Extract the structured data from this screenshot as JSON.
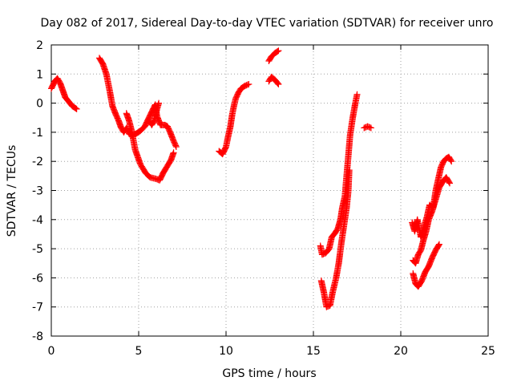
{
  "chart_data": {
    "type": "scatter",
    "title": "Day 082 of 2017, Sidereal Day-to-day VTEC variation (SDTVAR) for receiver unro",
    "xlabel": "GPS time / hours",
    "ylabel": "SDTVAR / TECUs",
    "xlim": [
      0,
      25
    ],
    "ylim": [
      -8,
      2
    ],
    "xticks": [
      0,
      5,
      10,
      15,
      20,
      25
    ],
    "yticks": [
      -8,
      -7,
      -6,
      -5,
      -4,
      -3,
      -2,
      -1,
      0,
      1,
      2
    ],
    "grid": true,
    "marker": "+",
    "marker_color": "#ff0000",
    "series": [
      {
        "name": "SDTVAR",
        "segments": [
          [
            [
              0.0,
              0.5
            ],
            [
              0.2,
              0.75
            ],
            [
              0.35,
              0.85
            ],
            [
              0.5,
              0.7
            ],
            [
              0.65,
              0.45
            ],
            [
              0.8,
              0.2
            ],
            [
              1.0,
              0.05
            ],
            [
              1.2,
              -0.1
            ],
            [
              1.45,
              -0.2
            ]
          ],
          [
            [
              2.75,
              1.55
            ],
            [
              2.95,
              1.35
            ],
            [
              3.15,
              1.0
            ],
            [
              3.35,
              0.4
            ],
            [
              3.5,
              -0.1
            ],
            [
              3.7,
              -0.4
            ],
            [
              3.85,
              -0.6
            ],
            [
              4.0,
              -0.85
            ],
            [
              4.15,
              -1.0
            ],
            [
              4.3,
              -0.85
            ],
            [
              4.45,
              -1.05
            ],
            [
              4.6,
              -1.1
            ],
            [
              4.85,
              -1.05
            ],
            [
              5.1,
              -0.95
            ],
            [
              5.35,
              -0.8
            ],
            [
              5.55,
              -0.55
            ],
            [
              5.75,
              -0.3
            ],
            [
              5.95,
              -0.05
            ],
            [
              6.05,
              -0.45
            ],
            [
              6.25,
              -0.75
            ],
            [
              6.5,
              -0.75
            ],
            [
              6.65,
              -0.8
            ],
            [
              6.8,
              -1.0
            ],
            [
              7.0,
              -1.3
            ],
            [
              7.15,
              -1.5
            ]
          ],
          [
            [
              4.3,
              -0.35
            ],
            [
              4.45,
              -0.6
            ],
            [
              4.6,
              -0.95
            ],
            [
              4.8,
              -1.6
            ],
            [
              5.1,
              -2.1
            ],
            [
              5.4,
              -2.4
            ],
            [
              5.65,
              -2.55
            ],
            [
              6.0,
              -2.6
            ],
            [
              6.2,
              -2.65
            ],
            [
              6.4,
              -2.4
            ],
            [
              6.6,
              -2.2
            ],
            [
              6.85,
              -1.95
            ],
            [
              7.0,
              -1.7
            ]
          ],
          [
            [
              5.6,
              -0.6
            ],
            [
              5.75,
              -0.75
            ],
            [
              5.9,
              -0.6
            ],
            [
              6.05,
              -0.2
            ],
            [
              6.15,
              0.0
            ]
          ],
          [
            [
              9.6,
              -1.65
            ],
            [
              9.8,
              -1.75
            ],
            [
              10.0,
              -1.5
            ],
            [
              10.1,
              -1.2
            ],
            [
              10.25,
              -0.8
            ],
            [
              10.35,
              -0.4
            ],
            [
              10.45,
              -0.1
            ],
            [
              10.55,
              0.15
            ],
            [
              10.7,
              0.35
            ],
            [
              10.85,
              0.5
            ],
            [
              11.1,
              0.6
            ],
            [
              11.3,
              0.65
            ]
          ],
          [
            [
              12.45,
              1.45
            ],
            [
              12.6,
              1.6
            ],
            [
              12.8,
              1.72
            ],
            [
              13.0,
              1.8
            ]
          ],
          [
            [
              12.45,
              0.75
            ],
            [
              12.6,
              0.9
            ],
            [
              12.8,
              0.8
            ],
            [
              13.0,
              0.65
            ]
          ],
          [
            [
              15.4,
              -4.9
            ],
            [
              15.5,
              -5.2
            ],
            [
              15.7,
              -5.15
            ],
            [
              15.9,
              -5.0
            ],
            [
              16.05,
              -4.6
            ],
            [
              16.25,
              -4.45
            ],
            [
              16.4,
              -4.3
            ],
            [
              16.55,
              -4.0
            ],
            [
              16.65,
              -3.6
            ],
            [
              16.8,
              -3.2
            ],
            [
              16.9,
              -2.5
            ],
            [
              17.0,
              -1.8
            ],
            [
              17.1,
              -1.1
            ],
            [
              17.25,
              -0.5
            ],
            [
              17.4,
              0.0
            ],
            [
              17.5,
              0.3
            ]
          ],
          [
            [
              15.45,
              -6.1
            ],
            [
              15.6,
              -6.5
            ],
            [
              15.75,
              -7.0
            ],
            [
              15.95,
              -6.95
            ],
            [
              16.1,
              -6.5
            ],
            [
              16.3,
              -6.0
            ],
            [
              16.45,
              -5.5
            ],
            [
              16.6,
              -4.8
            ],
            [
              16.75,
              -4.2
            ],
            [
              16.9,
              -3.6
            ],
            [
              17.0,
              -3.0
            ],
            [
              17.05,
              -2.3
            ]
          ],
          [
            [
              17.9,
              -0.85
            ],
            [
              18.1,
              -0.8
            ],
            [
              18.3,
              -0.85
            ]
          ],
          [
            [
              20.65,
              -4.1
            ],
            [
              20.8,
              -4.4
            ],
            [
              20.95,
              -4.0
            ],
            [
              21.15,
              -4.6
            ],
            [
              21.3,
              -4.3
            ],
            [
              21.5,
              -3.9
            ],
            [
              21.65,
              -3.5
            ],
            [
              21.85,
              -3.6
            ],
            [
              22.0,
              -3.0
            ],
            [
              22.15,
              -2.6
            ],
            [
              22.3,
              -2.2
            ],
            [
              22.45,
              -2.0
            ],
            [
              22.6,
              -1.9
            ],
            [
              22.75,
              -1.85
            ],
            [
              22.9,
              -2.0
            ]
          ],
          [
            [
              20.7,
              -5.4
            ],
            [
              20.85,
              -5.5
            ],
            [
              21.0,
              -5.2
            ],
            [
              21.15,
              -5.05
            ],
            [
              21.3,
              -4.7
            ],
            [
              21.45,
              -4.4
            ],
            [
              21.6,
              -4.0
            ],
            [
              21.8,
              -3.7
            ],
            [
              22.0,
              -3.3
            ],
            [
              22.2,
              -2.9
            ],
            [
              22.4,
              -2.7
            ],
            [
              22.6,
              -2.55
            ],
            [
              22.8,
              -2.75
            ]
          ],
          [
            [
              20.7,
              -5.85
            ],
            [
              20.85,
              -6.2
            ],
            [
              21.0,
              -6.3
            ],
            [
              21.2,
              -6.1
            ],
            [
              21.4,
              -5.8
            ],
            [
              21.6,
              -5.6
            ],
            [
              21.8,
              -5.3
            ],
            [
              22.0,
              -5.05
            ],
            [
              22.2,
              -4.85
            ]
          ]
        ]
      }
    ]
  }
}
